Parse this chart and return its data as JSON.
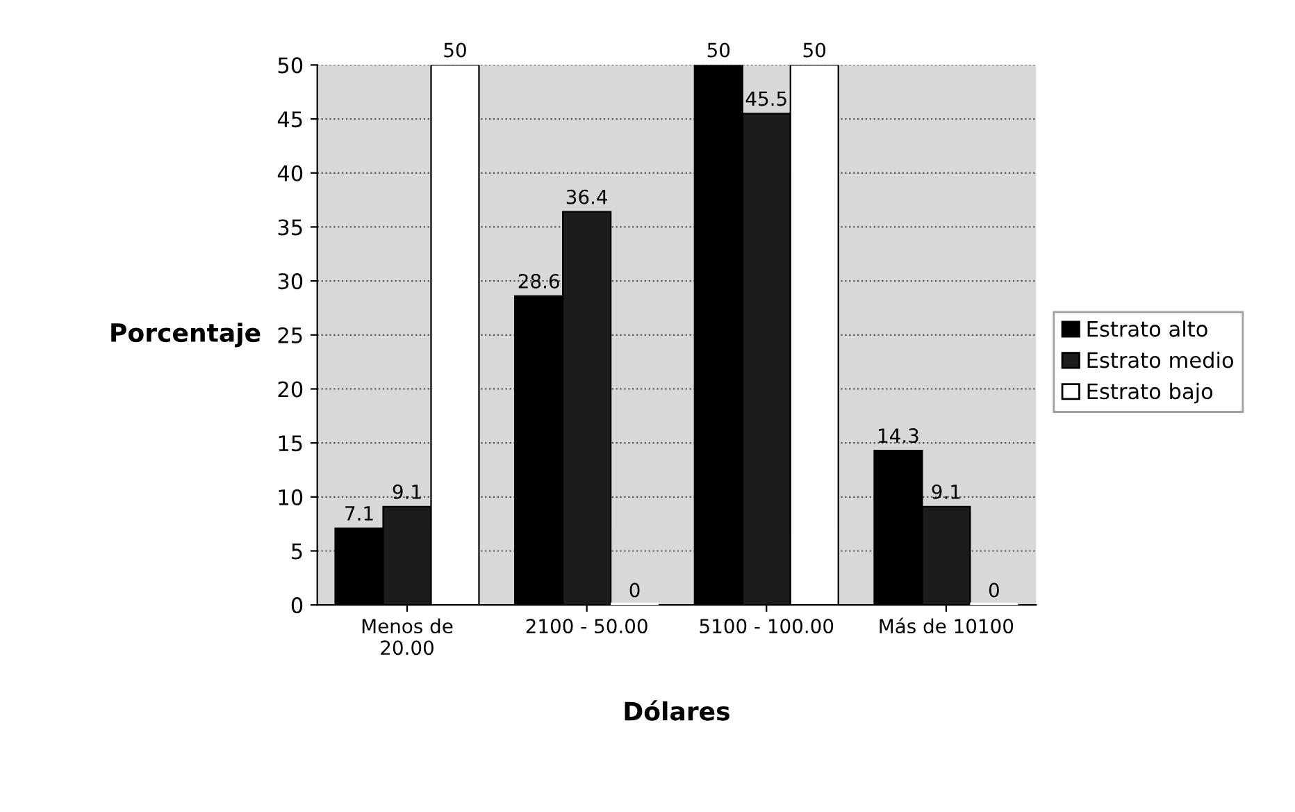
{
  "chart_data": {
    "type": "bar",
    "xlabel": "Dólares",
    "ylabel": "Porcentaje",
    "categories": [
      "Menos de\n20.00",
      "2100 - 50.00",
      "5100 - 100.00",
      "Más de 10100"
    ],
    "series": [
      {
        "name": "Estrato alto",
        "color": "#000000",
        "values": [
          7.1,
          28.6,
          50,
          14.3
        ]
      },
      {
        "name": "Estrato medio",
        "color": "#1c1c1c",
        "values": [
          9.1,
          36.4,
          45.5,
          9.1
        ]
      },
      {
        "name": "Estrato bajo",
        "color": "#ffffff",
        "values": [
          50,
          0,
          50,
          0
        ]
      }
    ],
    "ylim": [
      0,
      50
    ],
    "yticks": [
      0,
      5,
      10,
      15,
      20,
      25,
      30,
      35,
      40,
      45,
      50
    ],
    "grid": "y",
    "legend": "right",
    "data_labels": true
  }
}
